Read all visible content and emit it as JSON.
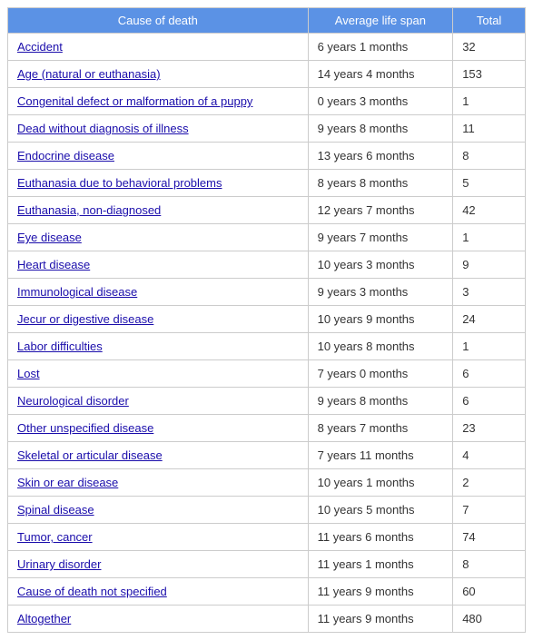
{
  "table": {
    "header_bg": "#5b92e5",
    "header_fg": "#ffffff",
    "border_color": "#cccccc",
    "link_color": "#1a0dab",
    "columns": [
      {
        "label": "Cause of death",
        "align": "center"
      },
      {
        "label": "Average life span",
        "align": "center"
      },
      {
        "label": "Total",
        "align": "center"
      }
    ],
    "rows": [
      {
        "cause": "Accident",
        "lifespan": "6 years 1 months",
        "total": "32"
      },
      {
        "cause": "Age (natural or euthanasia)",
        "lifespan": "14 years 4 months",
        "total": "153"
      },
      {
        "cause": "Congenital defect or malformation of a puppy",
        "lifespan": "0 years 3 months",
        "total": "1"
      },
      {
        "cause": "Dead without diagnosis of illness",
        "lifespan": "9 years 8 months",
        "total": "11"
      },
      {
        "cause": "Endocrine disease",
        "lifespan": "13 years 6 months",
        "total": "8"
      },
      {
        "cause": "Euthanasia due to behavioral problems",
        "lifespan": "8 years 8 months",
        "total": "5"
      },
      {
        "cause": "Euthanasia, non-diagnosed",
        "lifespan": "12 years 7 months",
        "total": "42"
      },
      {
        "cause": "Eye disease",
        "lifespan": "9 years 7 months",
        "total": "1"
      },
      {
        "cause": "Heart disease",
        "lifespan": "10 years 3 months",
        "total": "9"
      },
      {
        "cause": "Immunological disease",
        "lifespan": "9 years 3 months",
        "total": "3"
      },
      {
        "cause": "Jecur or digestive disease",
        "lifespan": "10 years 9 months",
        "total": "24"
      },
      {
        "cause": "Labor difficulties",
        "lifespan": "10 years 8 months",
        "total": "1"
      },
      {
        "cause": "Lost",
        "lifespan": "7 years 0 months",
        "total": "6"
      },
      {
        "cause": "Neurological disorder",
        "lifespan": "9 years 8 months",
        "total": "6"
      },
      {
        "cause": "Other unspecified disease",
        "lifespan": "8 years 7 months",
        "total": "23"
      },
      {
        "cause": "Skeletal or articular disease",
        "lifespan": "7 years 11 months",
        "total": "4"
      },
      {
        "cause": "Skin or ear disease",
        "lifespan": "10 years 1 months",
        "total": "2"
      },
      {
        "cause": "Spinal disease",
        "lifespan": "10 years 5 months",
        "total": "7"
      },
      {
        "cause": "Tumor, cancer",
        "lifespan": "11 years 6 months",
        "total": "74"
      },
      {
        "cause": "Urinary disorder",
        "lifespan": "11 years 1 months",
        "total": "8"
      },
      {
        "cause": "Cause of death not specified",
        "lifespan": "11 years 9 months",
        "total": "60"
      },
      {
        "cause": "Altogether",
        "lifespan": "11 years 9 months",
        "total": "480"
      }
    ]
  }
}
